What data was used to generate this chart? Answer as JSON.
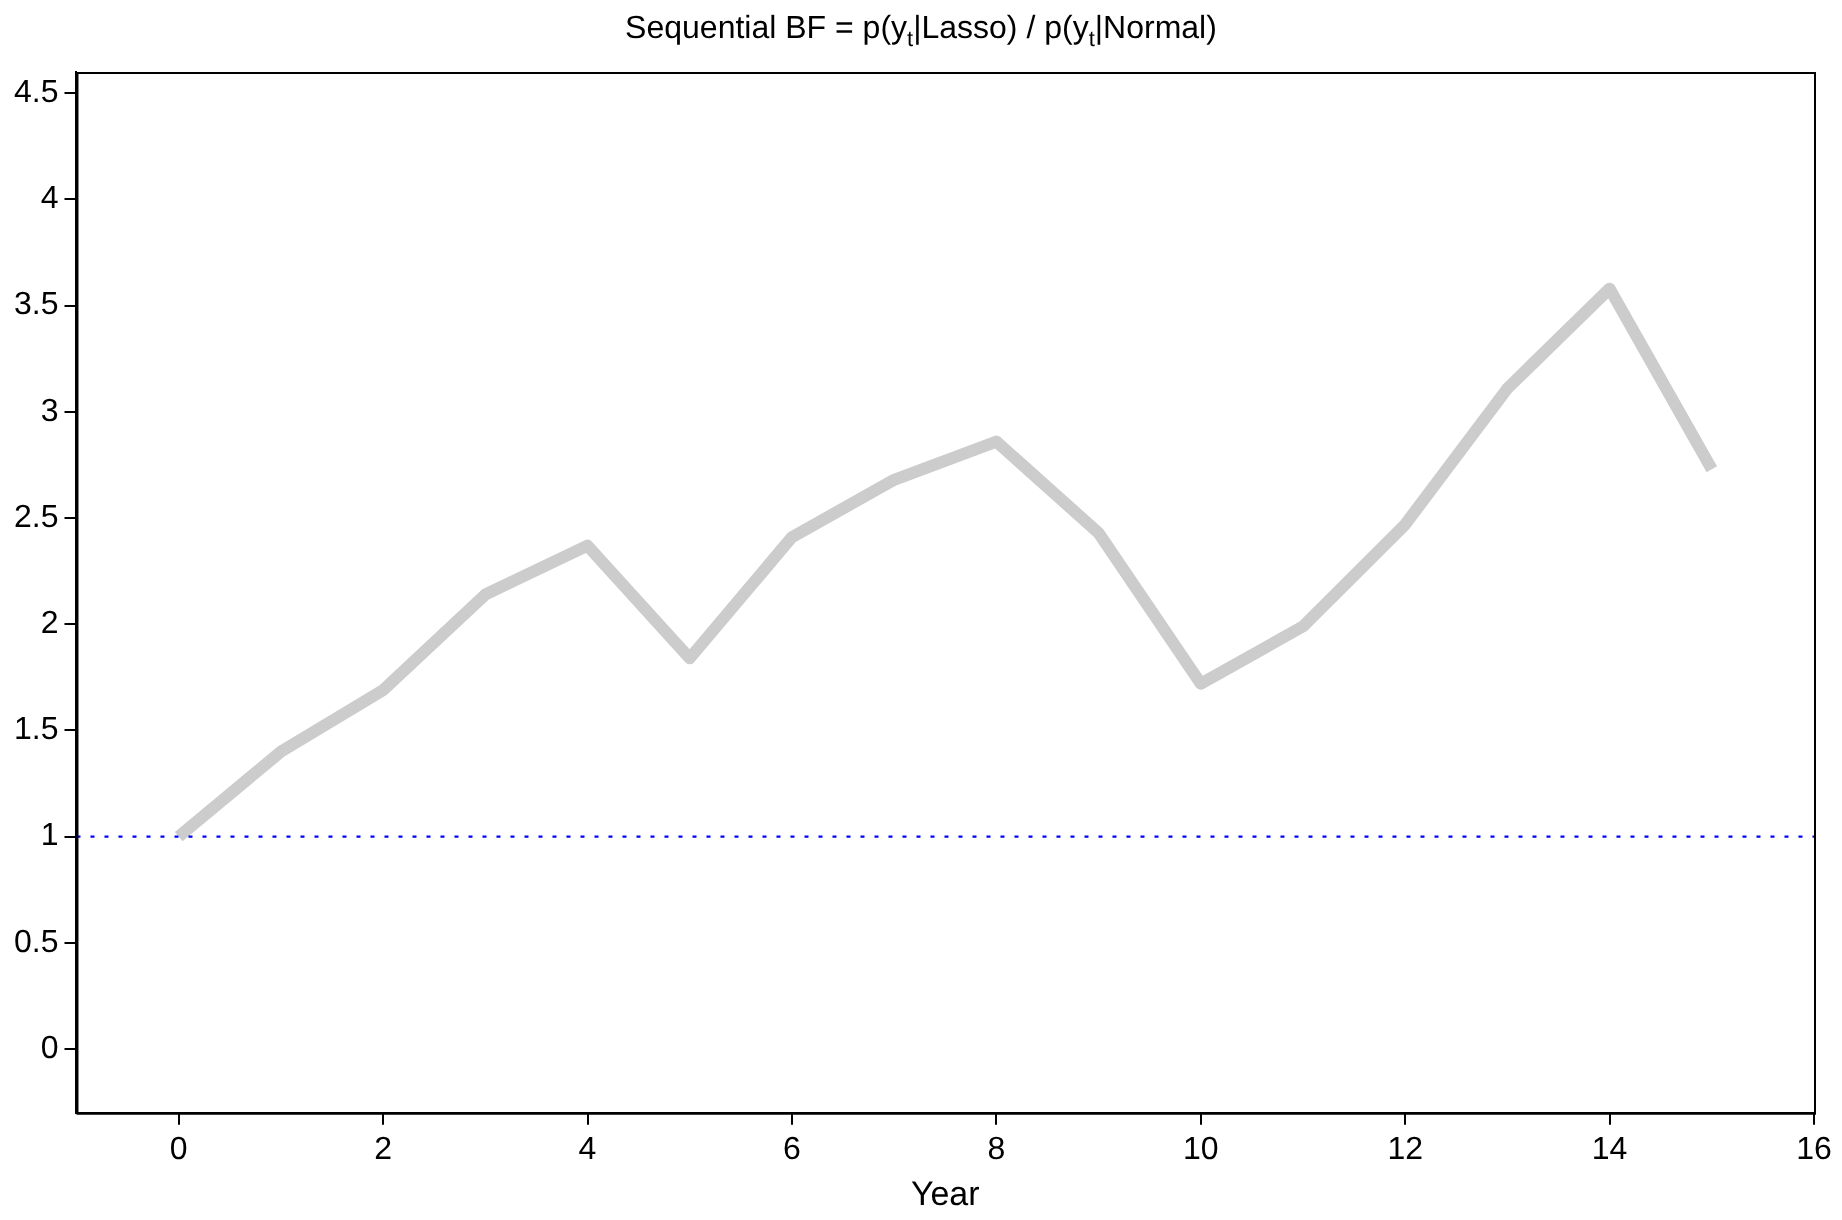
{
  "chart_data": {
    "type": "line",
    "title": "Sequential BF = p(y$_{t}$|Lasso) / p(y$_{t}$|Normal)",
    "xlabel": "Year",
    "x": [
      0,
      1,
      2,
      3,
      4,
      5,
      6,
      7,
      8,
      9,
      10,
      11,
      12,
      13,
      14,
      15
    ],
    "series": [
      {
        "color": "#cccccc",
        "values": [
          1.0,
          1.4,
          1.69,
          2.14,
          2.37,
          1.84,
          2.41,
          2.68,
          2.86,
          2.43,
          1.72,
          1.99,
          2.47,
          3.11,
          3.58,
          2.73
        ]
      }
    ],
    "xlim": [
      -1,
      16
    ],
    "xticks": [
      0,
      2,
      4,
      6,
      8,
      10,
      12,
      14,
      16
    ],
    "ylim": [
      -0.3,
      4.6
    ],
    "yticks": [
      0,
      0.5,
      1,
      1.5,
      2,
      2.5,
      3,
      3.5,
      4,
      4.5
    ],
    "ref_lines": [
      {
        "axis": "y",
        "value": 1,
        "color": "#0000ff",
        "line_style": "dotted"
      }
    ],
    "grid": false,
    "legend": false,
    "marker": "none",
    "line_style": "solid"
  }
}
